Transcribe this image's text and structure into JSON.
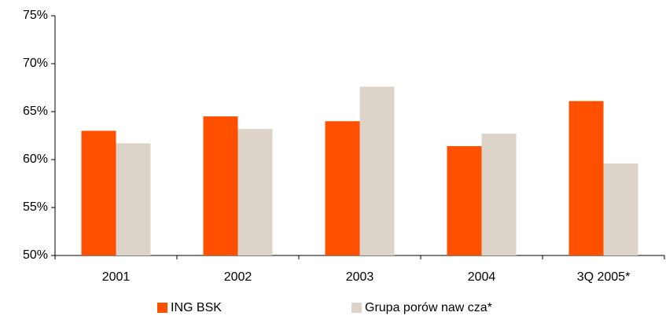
{
  "chart_data": {
    "type": "bar",
    "categories": [
      "2001",
      "2002",
      "2003",
      "2004",
      "3Q 2005*"
    ],
    "series": [
      {
        "name": "ING BSK",
        "color": "#ff5000",
        "values": [
          63.0,
          64.5,
          64.0,
          61.4,
          66.1
        ]
      },
      {
        "name": "Grupa porów naw cza*",
        "color": "#ddd4c9",
        "values": [
          61.7,
          63.2,
          67.6,
          62.7,
          59.6
        ]
      }
    ],
    "ylim": [
      50,
      75
    ],
    "yticks": [
      {
        "value": 50,
        "label": "50%"
      },
      {
        "value": 55,
        "label": "55%"
      },
      {
        "value": 60,
        "label": "60%"
      },
      {
        "value": 65,
        "label": "65%"
      },
      {
        "value": 70,
        "label": "70%"
      },
      {
        "value": 75,
        "label": "75%"
      }
    ],
    "grid": false,
    "legend": "bottom"
  }
}
